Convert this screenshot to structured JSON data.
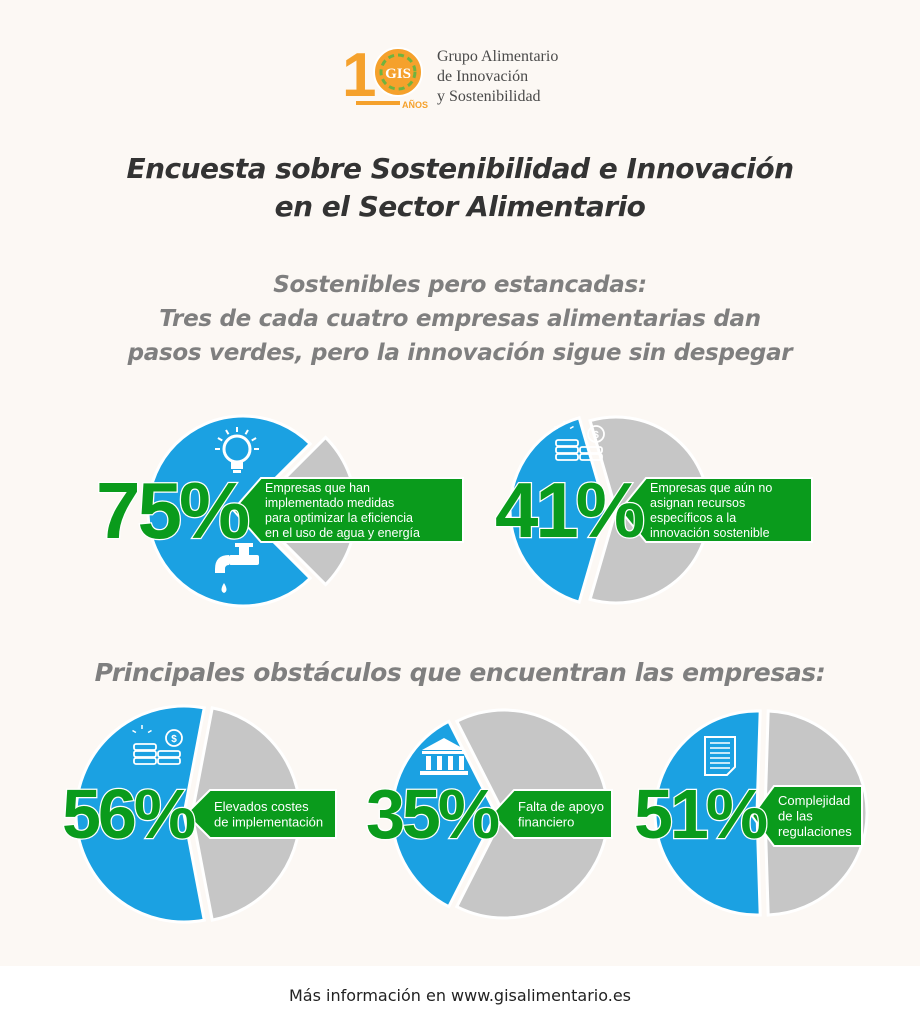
{
  "header": {
    "logo_badge_text": "GIS",
    "logo_years_digit": "10",
    "logo_years_word": "AÑOS",
    "org_name_lines": [
      "Grupo Alimentario",
      "de Innovación",
      "y Sostenibilidad"
    ]
  },
  "main_title_lines": [
    "Encuesta sobre Sostenibilidad e Innovación",
    "en el Sector Alimentario"
  ],
  "subtitle_lines": [
    "Sostenibles pero estancadas:",
    "Tres de cada cuatro empresas alimentarias dan",
    "pasos verdes, pero la innovación sigue sin despegar"
  ],
  "obstacles_title": "Principales obstáculos que encuentran las empresas:",
  "colors": {
    "blue": "#1ba1e2",
    "gray": "#c6c6c6",
    "green": "#0a9b1c",
    "orange": "#f5a12c"
  },
  "chart_data": [
    {
      "type": "pie",
      "percent_label": "75%",
      "value": 75,
      "slices": [
        {
          "value": 75
        },
        {
          "value": 25
        }
      ],
      "label_lines": [
        "Empresas que han",
        "implementado medidas",
        "para optimizar la eficiencia",
        "en el uso de agua y energía"
      ],
      "icons": [
        "light-bulb-icon",
        "water-tap-icon"
      ]
    },
    {
      "type": "pie",
      "percent_label": "41%",
      "value": 41,
      "slices": [
        {
          "value": 41
        },
        {
          "value": 59
        }
      ],
      "label_lines": [
        "Empresas que aún no",
        "asignan recursos",
        "específicos a la",
        "innovación sostenible"
      ],
      "icons": [
        "coins-icon"
      ]
    },
    {
      "type": "pie",
      "percent_label": "56%",
      "value": 56,
      "slices": [
        {
          "value": 56
        },
        {
          "value": 44
        }
      ],
      "label_lines": [
        "Elevados costes",
        "de implementación"
      ],
      "icons": [
        "coins-icon"
      ]
    },
    {
      "type": "pie",
      "percent_label": "35%",
      "value": 35,
      "slices": [
        {
          "value": 35
        },
        {
          "value": 65
        }
      ],
      "label_lines": [
        "Falta de apoyo",
        "financiero"
      ],
      "icons": [
        "bank-icon"
      ]
    },
    {
      "type": "pie",
      "percent_label": "51%",
      "value": 51,
      "slices": [
        {
          "value": 51
        },
        {
          "value": 49
        }
      ],
      "label_lines": [
        "Complejidad",
        "de las",
        "regulaciones"
      ],
      "icons": [
        "document-icon"
      ]
    }
  ],
  "footer_text": "Más información en www.gisalimentario.es"
}
